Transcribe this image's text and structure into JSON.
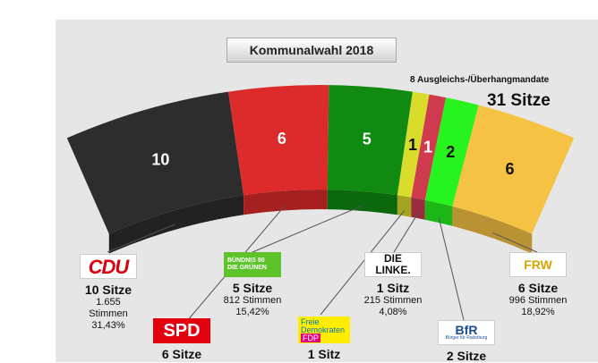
{
  "title": "Kommunalwahl 2018",
  "mandate_note": "8 Ausgleichs-/Überhangmandate",
  "total_seats": "31 Sitze",
  "chart_data": {
    "type": "pie",
    "variant": "semicircle-parliament",
    "title": "Kommunalwahl 2018",
    "total_seats": 31,
    "series": [
      {
        "name": "CDU",
        "seats": 10,
        "votes": 1655,
        "percent": 31.43,
        "color": "#2d2d2d"
      },
      {
        "name": "SPD",
        "seats": 6,
        "votes": null,
        "percent": null,
        "color": "#dd2b2b"
      },
      {
        "name": "Bündnis 90 Die Grünen",
        "seats": 5,
        "votes": 812,
        "percent": 15.42,
        "color": "#108a10"
      },
      {
        "name": "FDP",
        "seats": 1,
        "votes": null,
        "percent": null,
        "color": "#d9dc2a"
      },
      {
        "name": "Die Linke",
        "seats": 1,
        "votes": 215,
        "percent": 4.08,
        "color": "#cf3a4e"
      },
      {
        "name": "BfR",
        "seats": 2,
        "votes": null,
        "percent": null,
        "color": "#27f31e"
      },
      {
        "name": "FRW",
        "seats": 6,
        "votes": 996,
        "percent": 18.92,
        "color": "#f6c244"
      }
    ]
  },
  "parties": {
    "cdu": {
      "logo": "CDU",
      "seats": "10 Sitze",
      "votes": "1.655 Stimmen",
      "percent": "31,43%"
    },
    "gruene": {
      "logo_line1": "BÜNDNIS 90",
      "logo_line2": "DIE GRÜNEN",
      "seats": "5 Sitze",
      "votes": "812 Stimmen",
      "percent": "15,42%"
    },
    "linke": {
      "logo": "DIE LINKE.",
      "seats": "1 Sitz",
      "votes": "215 Stimmen",
      "percent": "4,08%"
    },
    "frw": {
      "logo": "FRW",
      "seats": "6 Sitze",
      "votes": "996 Stimmen",
      "percent": "18,92%"
    },
    "spd": {
      "logo": "SPD",
      "seats": "6 Sitze"
    },
    "fdp": {
      "logo_line1": "Freie",
      "logo_line2": "Demokraten",
      "logo_line3": "FDP",
      "seats": "1 Sitz"
    },
    "bfr": {
      "logo": "BfR",
      "logo_sub": "Bürger für Ratzeburg",
      "seats": "2 Sitze"
    }
  }
}
